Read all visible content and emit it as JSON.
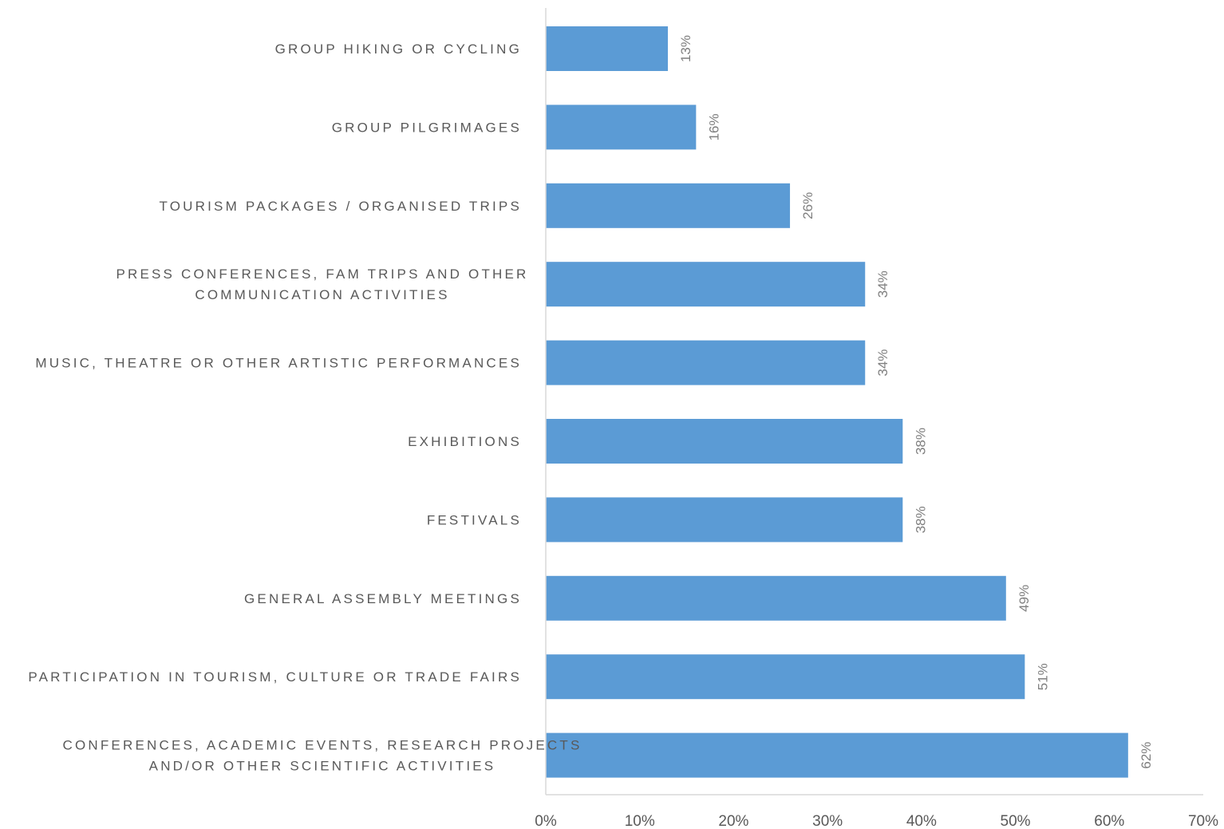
{
  "chart_data": {
    "type": "bar",
    "orientation": "horizontal",
    "categories": [
      [
        "GROUP HIKING OR CYCLING"
      ],
      [
        "GROUP PILGRIMAGES"
      ],
      [
        "TOURISM PACKAGES / ORGANISED TRIPS"
      ],
      [
        "PRESS CONFERENCES, FAM TRIPS AND OTHER",
        "COMMUNICATION ACTIVITIES"
      ],
      [
        "MUSIC, THEATRE OR OTHER ARTISTIC PERFORMANCES"
      ],
      [
        "EXHIBITIONS"
      ],
      [
        "FESTIVALS"
      ],
      [
        "GENERAL ASSEMBLY MEETINGS"
      ],
      [
        "PARTICIPATION IN TOURISM, CULTURE OR TRADE FAIRS"
      ],
      [
        "CONFERENCES, ACADEMIC EVENTS, RESEARCH PROJECTS",
        "AND/OR OTHER SCIENTIFIC ACTIVITIES"
      ]
    ],
    "values": [
      13,
      16,
      26,
      34,
      34,
      38,
      38,
      49,
      51,
      62
    ],
    "data_labels": [
      "13%",
      "16%",
      "26%",
      "34%",
      "34%",
      "38%",
      "38%",
      "49%",
      "51%",
      "62%"
    ],
    "xlim": [
      0,
      70
    ],
    "x_ticks": [
      "0%",
      "10%",
      "20%",
      "30%",
      "40%",
      "50%",
      "60%",
      "70%"
    ],
    "grid": false,
    "bar_color": "#5b9bd5",
    "axis_color": "#d9d9d9"
  }
}
